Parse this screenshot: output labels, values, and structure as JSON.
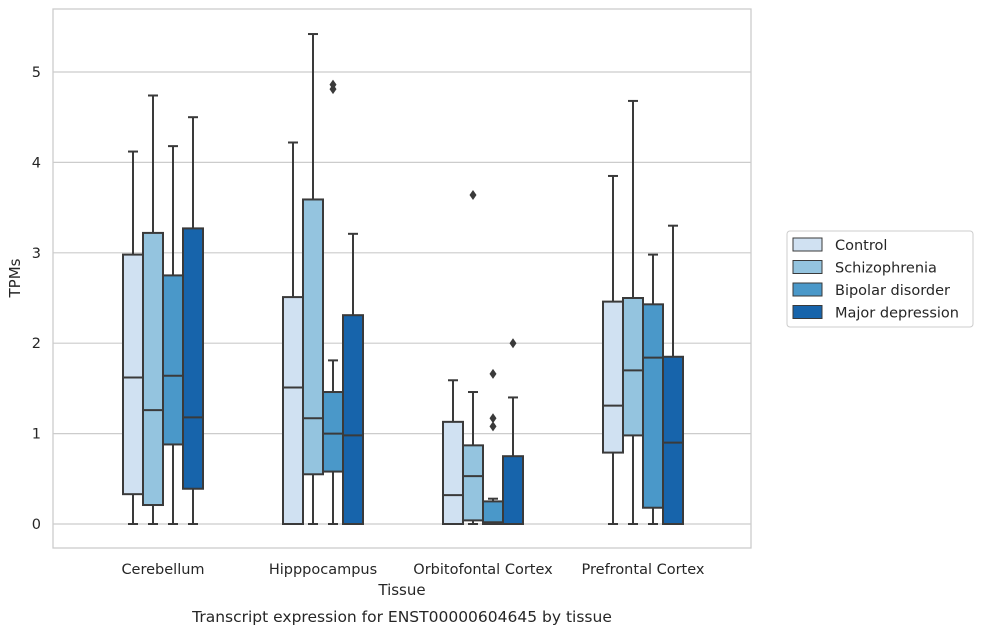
{
  "chart_data": {
    "type": "box",
    "title": "",
    "caption": "Transcript expression for ENST00000604645 by tissue",
    "xlabel": "Tissue",
    "ylabel": "TPMs",
    "ylim": [
      -0.25,
      5.7
    ],
    "yticks": [
      "0",
      "1",
      "2",
      "3",
      "4",
      "5"
    ],
    "grid": "horizontal",
    "legend_position": "right",
    "categories": [
      "Cerebellum",
      "Hipppocampus",
      "Orbitofontal Cortex",
      "Prefrontal Cortex"
    ],
    "series": [
      {
        "name": "Control",
        "color": "#d0e1f2",
        "boxes": [
          {
            "min": 0,
            "q1": 0.33,
            "median": 1.62,
            "q3": 2.98,
            "max": 4.12,
            "outliers": []
          },
          {
            "min": 0,
            "q1": 0,
            "median": 1.51,
            "q3": 2.51,
            "max": 4.22,
            "outliers": []
          },
          {
            "min": 0,
            "q1": 0,
            "median": 0.32,
            "q3": 1.13,
            "max": 1.59,
            "outliers": []
          },
          {
            "min": 0,
            "q1": 0.79,
            "median": 1.31,
            "q3": 2.46,
            "max": 3.85,
            "outliers": []
          }
        ]
      },
      {
        "name": "Schizophrenia",
        "color": "#94c4df",
        "boxes": [
          {
            "min": 0,
            "q1": 0.21,
            "median": 1.26,
            "q3": 3.22,
            "max": 4.74,
            "outliers": []
          },
          {
            "min": 0,
            "q1": 0.55,
            "median": 1.17,
            "q3": 3.59,
            "max": 5.42,
            "outliers": []
          },
          {
            "min": 0,
            "q1": 0.04,
            "median": 0.53,
            "q3": 0.87,
            "max": 1.46,
            "outliers": [
              3.64
            ]
          },
          {
            "min": 0,
            "q1": 0.98,
            "median": 1.7,
            "q3": 2.5,
            "max": 4.68,
            "outliers": []
          }
        ]
      },
      {
        "name": "Bipolar disorder",
        "color": "#4a98c9",
        "boxes": [
          {
            "min": 0,
            "q1": 0.88,
            "median": 1.64,
            "q3": 2.75,
            "max": 4.18,
            "outliers": []
          },
          {
            "min": 0,
            "q1": 0.58,
            "median": 1.0,
            "q3": 1.46,
            "max": 1.81,
            "outliers": [
              4.81,
              4.86
            ]
          },
          {
            "min": 0,
            "q1": 0,
            "median": 0.02,
            "q3": 0.25,
            "max": 0.28,
            "outliers": [
              1.08,
              1.17,
              1.66
            ]
          },
          {
            "min": 0,
            "q1": 0.18,
            "median": 1.84,
            "q3": 2.43,
            "max": 2.98,
            "outliers": []
          }
        ]
      },
      {
        "name": "Major depression",
        "color": "#1764ab",
        "boxes": [
          {
            "min": 0,
            "q1": 0.39,
            "median": 1.18,
            "q3": 3.27,
            "max": 4.5,
            "outliers": []
          },
          {
            "min": 0,
            "q1": 0,
            "median": 0.98,
            "q3": 2.31,
            "max": 3.21,
            "outliers": []
          },
          {
            "min": 0,
            "q1": 0,
            "median": 0,
            "q3": 0.75,
            "max": 1.4,
            "outliers": [
              2.0
            ]
          },
          {
            "min": 0,
            "q1": 0,
            "median": 0.9,
            "q3": 1.85,
            "max": 3.3,
            "outliers": []
          }
        ]
      }
    ]
  }
}
